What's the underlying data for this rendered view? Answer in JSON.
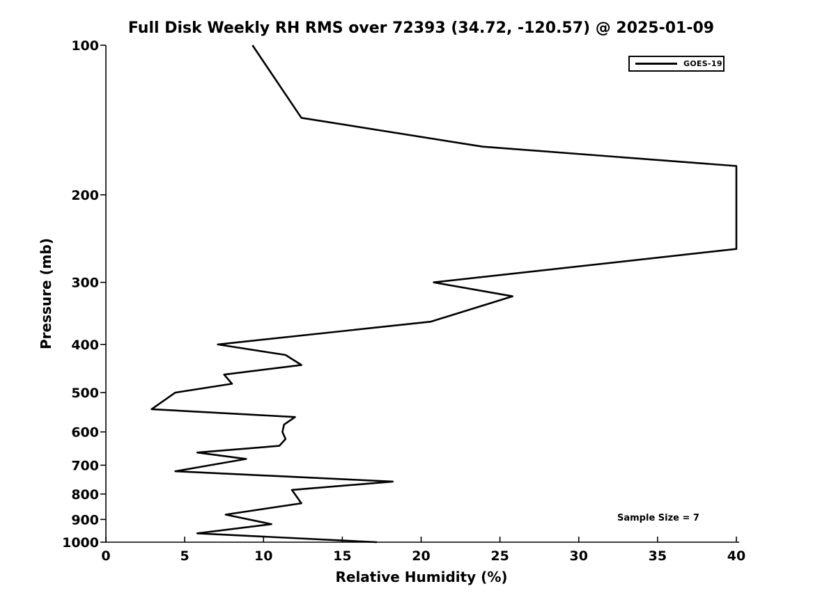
{
  "chart_data": {
    "type": "line",
    "title": "Full Disk Weekly RH RMS over 72393 (34.72, -120.57) @ 2025-01-09",
    "xlabel": "Relative Humidity (%)",
    "ylabel": "Pressure (mb)",
    "xlim": [
      0,
      40
    ],
    "ylim": [
      100,
      1000
    ],
    "y_scale": "log",
    "y_inverted": true,
    "x_ticks": [
      0,
      5,
      10,
      15,
      20,
      25,
      30,
      35,
      40
    ],
    "y_ticks": [
      100,
      200,
      300,
      400,
      500,
      600,
      700,
      800,
      900,
      1000
    ],
    "grid": false,
    "legend": {
      "position": "top-right",
      "entries": [
        {
          "label": "GOES-19",
          "color": "#000000"
        }
      ]
    },
    "annotation": "Sample Size = 7",
    "axis_color": "#000000",
    "background_color": "#ffffff",
    "series": [
      {
        "name": "GOES-19",
        "color": "#000000",
        "line_width": 2.6,
        "points_rh_pressure": [
          [
            9.3,
            100
          ],
          [
            12.4,
            140
          ],
          [
            23.9,
            160
          ],
          [
            40,
            175
          ],
          [
            40,
            257
          ],
          [
            20.8,
            300
          ],
          [
            25.8,
            320
          ],
          [
            20.6,
            360
          ],
          [
            7.1,
            400
          ],
          [
            11.4,
            420
          ],
          [
            12.4,
            440
          ],
          [
            7.5,
            460
          ],
          [
            8.0,
            480
          ],
          [
            4.4,
            500
          ],
          [
            2.9,
            540
          ],
          [
            12.0,
            560
          ],
          [
            11.3,
            580
          ],
          [
            11.2,
            600
          ],
          [
            11.4,
            620
          ],
          [
            11.0,
            640
          ],
          [
            5.8,
            660
          ],
          [
            8.9,
            680
          ],
          [
            4.4,
            720
          ],
          [
            18.2,
            755
          ],
          [
            11.8,
            785
          ],
          [
            12.4,
            835
          ],
          [
            7.6,
            880
          ],
          [
            10.5,
            920
          ],
          [
            5.8,
            960
          ],
          [
            17.2,
            1000
          ]
        ]
      }
    ]
  }
}
